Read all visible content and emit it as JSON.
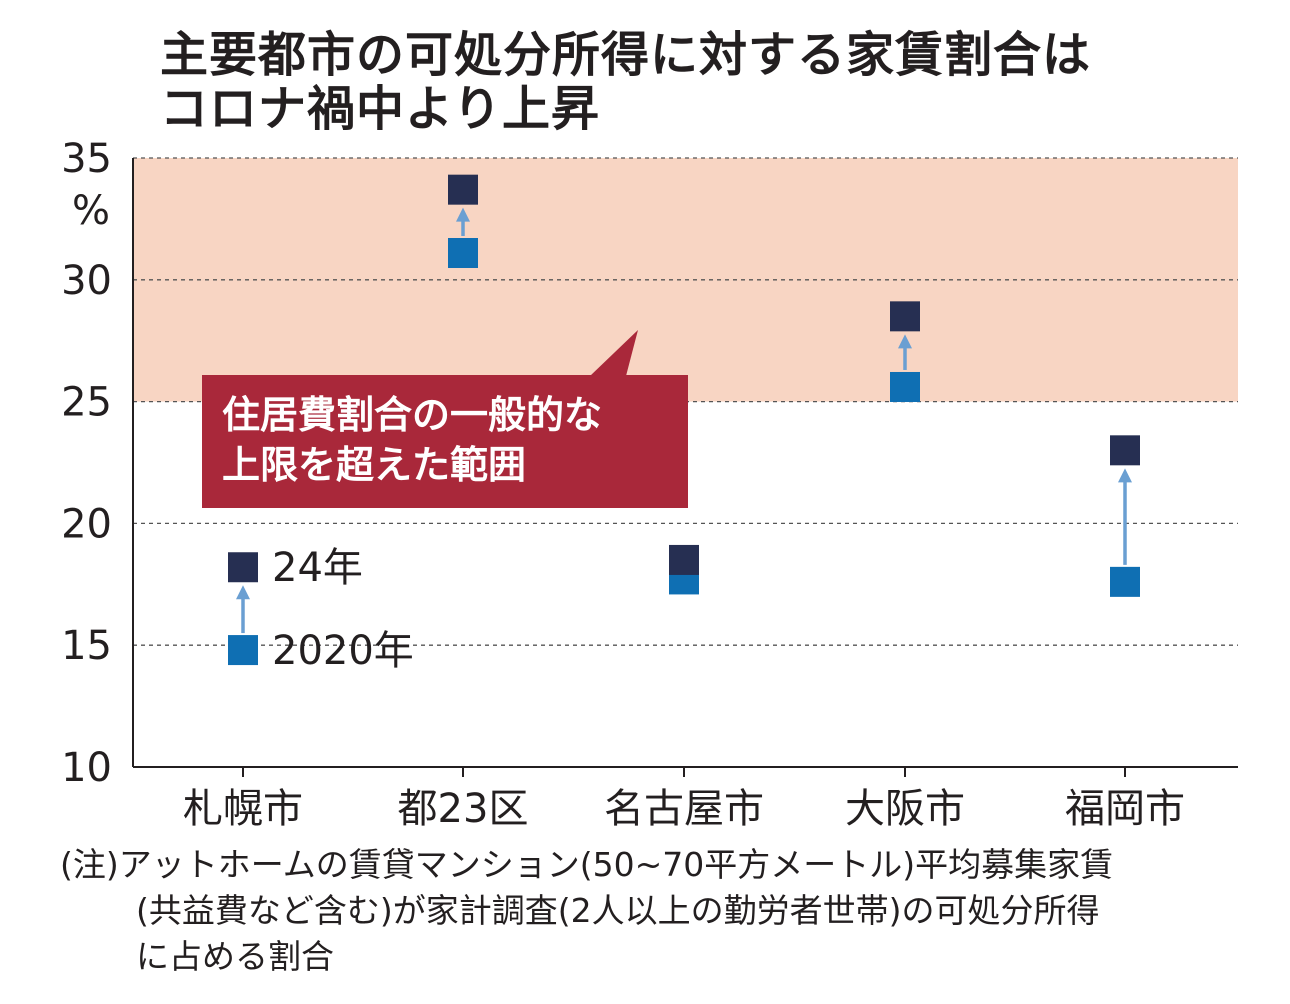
{
  "title": {
    "line1": "主要都市の可処分所得に対する家賃割合は",
    "line2": "コロナ禍中より上昇"
  },
  "callout": {
    "line1": "住居費割合の一般的な",
    "line2": "上限を超えた範囲"
  },
  "note": {
    "line1": "(注)アットホームの賃貸マンション(50~70平方メートル)平均募集家賃",
    "line2": "(共益費など含む)が家計調査(2人以上の勤労者世帯)の可処分所得",
    "line3": "に占める割合"
  },
  "colors": {
    "series_2024": "#262f52",
    "series_2020": "#0f6fb3",
    "arrow": "#6a9fd2",
    "band": "#f8d5c3",
    "callout": "#a9283a"
  },
  "chart_data": {
    "type": "scatter",
    "categories": [
      "札幌市",
      "都23区",
      "名古屋市",
      "大阪市",
      "福岡市"
    ],
    "series": [
      {
        "name": "24年",
        "values": [
          18.2,
          33.7,
          18.5,
          28.5,
          23.0
        ]
      },
      {
        "name": "2020年",
        "values": [
          14.8,
          31.1,
          17.7,
          25.6,
          17.6
        ]
      }
    ],
    "ylim": [
      10,
      35
    ],
    "yticks": [
      10,
      15,
      20,
      25,
      30,
      35
    ],
    "yunit": "%",
    "band": {
      "from": 25,
      "to": 35
    },
    "grid": true,
    "legend": "inside-left"
  }
}
